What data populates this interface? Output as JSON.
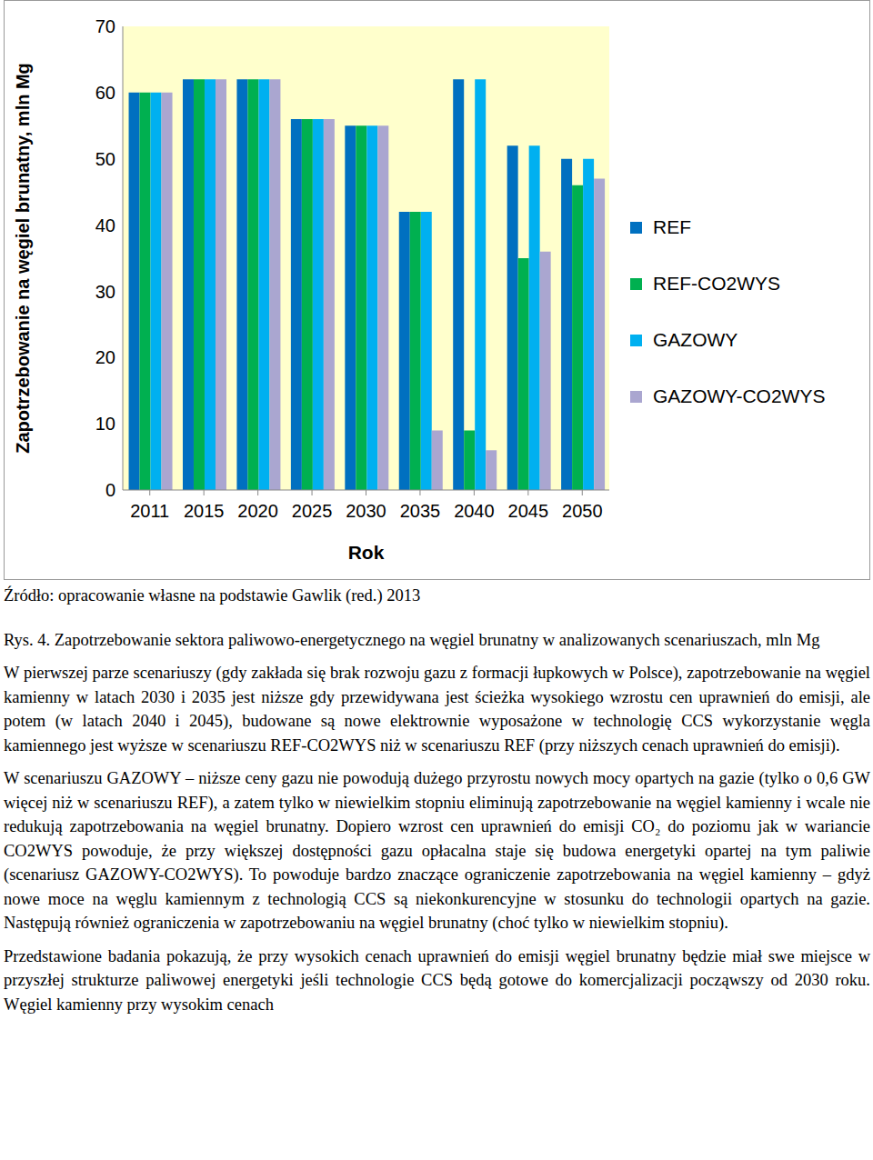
{
  "chart_data": {
    "type": "bar",
    "categories": [
      "2011",
      "2015",
      "2020",
      "2025",
      "2030",
      "2035",
      "2040",
      "2045",
      "2050"
    ],
    "series": [
      {
        "name": "REF",
        "color": "#0070c0",
        "values": [
          60,
          62,
          62,
          56,
          55,
          42,
          62,
          52,
          50
        ]
      },
      {
        "name": "REF-CO2WYS",
        "color": "#00b050",
        "values": [
          60,
          62,
          62,
          56,
          55,
          42,
          9,
          35,
          46
        ]
      },
      {
        "name": "GAZOWY",
        "color": "#00b0f0",
        "values": [
          60,
          62,
          62,
          56,
          55,
          42,
          62,
          52,
          50
        ]
      },
      {
        "name": "GAZOWY-CO2WYS",
        "color": "#aaa6d0",
        "values": [
          60,
          62,
          62,
          56,
          55,
          9,
          6,
          36,
          47
        ]
      }
    ],
    "xlabel": "Rok",
    "ylabel": "Zapotrzebowanie na węgiel brunatny, mln Mg",
    "ylim": [
      0,
      70
    ],
    "yticks": [
      0,
      10,
      20,
      30,
      40,
      50,
      60,
      70
    ],
    "grid": false,
    "legend": "right"
  },
  "source": "Źródło: opracowanie własne na podstawie Gawlik (red.) 2013",
  "caption": "Rys. 4. Zapotrzebowanie sektora paliwowo-energetycznego na węgiel brunatny w analizowanych scenariuszach, mln Mg",
  "paragraphs": [
    "W pierwszej parze scenariuszy (gdy zakłada się brak rozwoju gazu z formacji łupkowych w Polsce), zapotrzebowanie na węgiel kamienny w latach 2030 i 2035 jest niższe gdy przewidywana jest ścieżka wysokiego wzrostu cen uprawnień do emisji, ale potem (w latach 2040 i 2045), budowane są nowe elektrownie wyposażone w technologię CCS wykorzystanie węgla kamiennego jest wyższe w scenariuszu REF-CO2WYS niż w scenariuszu REF (przy niższych cenach uprawnień do emisji).",
    "W scenariuszu GAZOWY – niższe ceny gazu nie powodują dużego przyrostu nowych mocy opartych na gazie (tylko o 0,6 GW więcej niż w scenariuszu REF), a zatem tylko w niewielkim stopniu eliminują zapotrzebowanie na węgiel kamienny i wcale nie redukują zapotrzebowania na węgiel brunatny. Dopiero wzrost cen uprawnień do emisji CO₂ do poziomu jak w wariancie CO2WYS powoduje, że przy większej dostępności gazu opłacalna staje się budowa energetyki opartej na tym paliwie (scenariusz GAZOWY-CO2WYS). To powoduje bardzo znaczące ograniczenie zapotrzebowania na węgiel kamienny – gdyż nowe moce na węglu kamiennym z technologią CCS są niekonkurencyjne w stosunku do technologii opartych na gazie. Następują również ograniczenia w zapotrzebowaniu na węgiel brunatny (choć tylko w niewielkim stopniu).",
    "Przedstawione badania pokazują, że przy wysokich cenach uprawnień do emisji węgiel brunatny będzie miał swe miejsce w przyszłej strukturze paliwowej energetyki jeśli technologie CCS będą gotowe do komercjalizacji począwszy od 2030 roku. Węgiel kamienny przy wysokim cenach"
  ]
}
